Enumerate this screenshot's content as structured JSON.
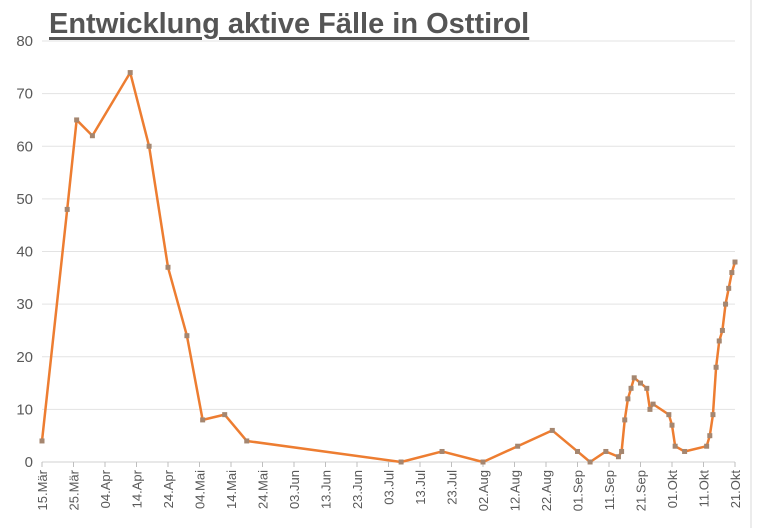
{
  "chart_data": {
    "type": "line",
    "title": "Entwicklung aktive Fälle in Osttirol",
    "xlabel": "",
    "ylabel": "",
    "ylim": [
      0,
      80
    ],
    "yticks": [
      "0",
      "10",
      "20",
      "30",
      "40",
      "50",
      "60",
      "70",
      "80"
    ],
    "xticks": [
      "15.Mär",
      "25.Mär",
      "04.Apr",
      "14.Apr",
      "24.Apr",
      "04.Mai",
      "14.Mai",
      "24.Mai",
      "03.Jun",
      "13.Jun",
      "23.Jun",
      "03.Jul",
      "13.Jul",
      "23.Jul",
      "02.Aug",
      "12.Aug",
      "22.Aug",
      "01.Sep",
      "11.Sep",
      "21.Sep",
      "01.Okt",
      "11.Okt",
      "21.Okt"
    ],
    "grid": true,
    "line_color": "#ED7D31",
    "marker_color": "#A5866F",
    "points": [
      [
        "03-15",
        4
      ],
      [
        "03-23",
        48
      ],
      [
        "03-26",
        65
      ],
      [
        "03-31",
        62
      ],
      [
        "04-12",
        74
      ],
      [
        "04-18",
        60
      ],
      [
        "04-24",
        37
      ],
      [
        "04-30",
        24
      ],
      [
        "05-05",
        8
      ],
      [
        "05-12",
        9
      ],
      [
        "05-19",
        4
      ],
      [
        "07-07",
        0
      ],
      [
        "07-20",
        2
      ],
      [
        "08-02",
        0
      ],
      [
        "08-13",
        3
      ],
      [
        "08-24",
        6
      ],
      [
        "09-01",
        2
      ],
      [
        "09-05",
        0
      ],
      [
        "09-10",
        2
      ],
      [
        "09-14",
        1
      ],
      [
        "09-15",
        2
      ],
      [
        "09-16",
        8
      ],
      [
        "09-17",
        12
      ],
      [
        "09-18",
        14
      ],
      [
        "09-19",
        16
      ],
      [
        "09-21",
        15
      ],
      [
        "09-23",
        14
      ],
      [
        "09-24",
        10
      ],
      [
        "09-25",
        11
      ],
      [
        "09-30",
        9
      ],
      [
        "10-01",
        7
      ],
      [
        "10-02",
        3
      ],
      [
        "10-05",
        2
      ],
      [
        "10-12",
        3
      ],
      [
        "10-13",
        5
      ],
      [
        "10-14",
        9
      ],
      [
        "10-15",
        18
      ],
      [
        "10-16",
        23
      ],
      [
        "10-17",
        25
      ],
      [
        "10-18",
        30
      ],
      [
        "10-19",
        33
      ],
      [
        "10-20",
        36
      ],
      [
        "10-21",
        38
      ]
    ]
  }
}
